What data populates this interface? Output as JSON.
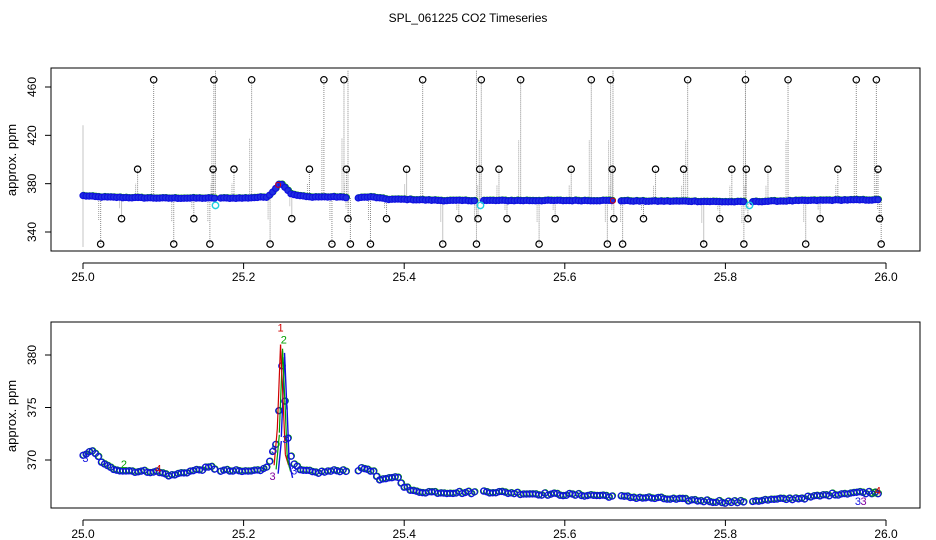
{
  "title": "SPL_061225  CO2 Timeseries",
  "chart_data": [
    {
      "type": "scatter",
      "ylabel": "approx. ppm",
      "xlabel": "",
      "xlim": [
        25.0,
        26.0
      ],
      "ylim": [
        323,
        475
      ],
      "xticks": [
        25.0,
        25.2,
        25.4,
        25.6,
        25.8,
        26.0
      ],
      "xtick_labels": [
        "25.0",
        "25.2",
        "25.4",
        "25.6",
        "25.8",
        "26.0"
      ],
      "yticks": [
        340,
        380,
        420,
        460
      ],
      "ytick_labels": [
        "340",
        "380",
        "420",
        "460"
      ],
      "colors": {
        "series": "#1010e0",
        "series_edge": "#00a000",
        "spike_line": "#7a7a7a",
        "outlier": "#000000",
        "cyan": "#20d0e0",
        "red": "#e00000"
      },
      "baseline": [
        [
          25.0,
          370
        ],
        [
          25.02,
          369
        ],
        [
          25.05,
          368.5
        ],
        [
          25.1,
          368
        ],
        [
          25.16,
          368
        ],
        [
          25.2,
          368
        ],
        [
          25.23,
          369
        ],
        [
          25.24,
          376
        ],
        [
          25.245,
          381
        ],
        [
          25.25,
          378
        ],
        [
          25.26,
          371
        ],
        [
          25.28,
          369
        ],
        [
          25.32,
          369
        ],
        [
          25.33,
          368
        ],
        [
          25.36,
          369
        ],
        [
          25.38,
          367
        ],
        [
          25.4,
          367
        ],
        [
          25.45,
          366
        ],
        [
          25.5,
          366
        ],
        [
          25.55,
          366
        ],
        [
          25.6,
          366
        ],
        [
          25.66,
          366
        ],
        [
          25.7,
          365.5
        ],
        [
          25.75,
          365.5
        ],
        [
          25.8,
          365
        ],
        [
          25.82,
          365
        ],
        [
          25.83,
          365
        ],
        [
          25.86,
          365.5
        ],
        [
          25.9,
          366
        ],
        [
          25.95,
          366.5
        ],
        [
          25.99,
          366.5
        ]
      ],
      "gaps": [
        [
          25.165,
          25.17
        ],
        [
          25.33,
          25.34
        ],
        [
          25.49,
          25.495
        ],
        [
          25.66,
          25.667
        ],
        [
          25.825,
          25.832
        ]
      ],
      "outliers_black": [
        [
          25.022,
          330
        ],
        [
          25.048,
          351
        ],
        [
          25.068,
          392
        ],
        [
          25.088,
          466
        ],
        [
          25.113,
          330
        ],
        [
          25.138,
          351
        ],
        [
          25.158,
          330
        ],
        [
          25.162,
          392
        ],
        [
          25.163,
          466
        ],
        [
          25.188,
          392
        ],
        [
          25.21,
          466
        ],
        [
          25.233,
          330
        ],
        [
          25.26,
          351
        ],
        [
          25.282,
          392
        ],
        [
          25.3,
          466
        ],
        [
          25.31,
          330
        ],
        [
          25.325,
          466
        ],
        [
          25.328,
          392
        ],
        [
          25.33,
          351
        ],
        [
          25.333,
          330
        ],
        [
          25.358,
          330
        ],
        [
          25.378,
          351
        ],
        [
          25.403,
          392
        ],
        [
          25.423,
          466
        ],
        [
          25.448,
          330
        ],
        [
          25.468,
          351
        ],
        [
          25.49,
          330
        ],
        [
          25.492,
          351
        ],
        [
          25.494,
          392
        ],
        [
          25.496,
          466
        ],
        [
          25.518,
          392
        ],
        [
          25.528,
          351
        ],
        [
          25.545,
          466
        ],
        [
          25.568,
          330
        ],
        [
          25.588,
          351
        ],
        [
          25.608,
          392
        ],
        [
          25.633,
          466
        ],
        [
          25.653,
          330
        ],
        [
          25.657,
          466
        ],
        [
          25.659,
          392
        ],
        [
          25.661,
          351
        ],
        [
          25.672,
          330
        ],
        [
          25.698,
          351
        ],
        [
          25.713,
          392
        ],
        [
          25.748,
          392
        ],
        [
          25.753,
          466
        ],
        [
          25.773,
          330
        ],
        [
          25.793,
          351
        ],
        [
          25.808,
          392
        ],
        [
          25.823,
          330
        ],
        [
          25.825,
          466
        ],
        [
          25.826,
          392
        ],
        [
          25.828,
          351
        ],
        [
          25.853,
          392
        ],
        [
          25.878,
          466
        ],
        [
          25.9,
          330
        ],
        [
          25.918,
          351
        ],
        [
          25.94,
          392
        ],
        [
          25.963,
          466
        ],
        [
          25.988,
          466
        ],
        [
          25.99,
          392
        ],
        [
          25.992,
          351
        ],
        [
          25.994,
          330
        ]
      ],
      "outliers_cyan": [
        [
          25.165,
          362
        ],
        [
          25.495,
          362
        ],
        [
          25.83,
          362
        ]
      ]
    },
    {
      "type": "scatter",
      "ylabel": "approx. ppm",
      "xlabel": "",
      "xlim": [
        25.0,
        26.0
      ],
      "ylim": [
        365,
        383
      ],
      "xticks": [
        25.0,
        25.2,
        25.4,
        25.6,
        25.8,
        26.0
      ],
      "xtick_labels": [
        "25.0",
        "25.2",
        "25.4",
        "25.6",
        "25.8",
        "26.0"
      ],
      "yticks": [
        370,
        375,
        380
      ],
      "ytick_labels": [
        "370",
        "375",
        "380"
      ],
      "baseline": [
        [
          25.0,
          370.5
        ],
        [
          25.012,
          370.8
        ],
        [
          25.02,
          370.2
        ],
        [
          25.025,
          369.6
        ],
        [
          25.035,
          369.2
        ],
        [
          25.05,
          369.0
        ],
        [
          25.07,
          368.9
        ],
        [
          25.09,
          368.9
        ],
        [
          25.1,
          368.7
        ],
        [
          25.11,
          368.5
        ],
        [
          25.125,
          368.8
        ],
        [
          25.14,
          369.0
        ],
        [
          25.16,
          369.3
        ],
        [
          25.17,
          369.0
        ],
        [
          25.2,
          368.9
        ],
        [
          25.22,
          369.0
        ],
        [
          25.23,
          369.5
        ],
        [
          25.24,
          371.5
        ],
        [
          25.244,
          375.0
        ],
        [
          25.247,
          379.5
        ],
        [
          25.25,
          377.0
        ],
        [
          25.255,
          372.0
        ],
        [
          25.26,
          369.8
        ],
        [
          25.27,
          369.0
        ],
        [
          25.29,
          368.8
        ],
        [
          25.32,
          369.0
        ],
        [
          25.34,
          369.0
        ],
        [
          25.35,
          369.2
        ],
        [
          25.36,
          369.0
        ],
        [
          25.37,
          368.0
        ],
        [
          25.38,
          368.2
        ],
        [
          25.39,
          368.5
        ],
        [
          25.4,
          367.5
        ],
        [
          25.41,
          367.0
        ],
        [
          25.45,
          366.9
        ],
        [
          25.49,
          366.9
        ],
        [
          25.5,
          367.0
        ],
        [
          25.55,
          366.8
        ],
        [
          25.6,
          366.7
        ],
        [
          25.65,
          366.6
        ],
        [
          25.665,
          366.5
        ],
        [
          25.7,
          366.4
        ],
        [
          25.75,
          366.2
        ],
        [
          25.8,
          366.0
        ],
        [
          25.82,
          366.0
        ],
        [
          25.83,
          366.1
        ],
        [
          25.86,
          366.2
        ],
        [
          25.9,
          366.4
        ],
        [
          25.93,
          366.7
        ],
        [
          25.96,
          366.9
        ],
        [
          25.99,
          366.9
        ]
      ],
      "gaps": [
        [
          25.165,
          25.17
        ],
        [
          25.33,
          25.34
        ],
        [
          25.49,
          25.495
        ],
        [
          25.66,
          25.667
        ],
        [
          25.825,
          25.832
        ]
      ],
      "annotations": [
        {
          "text": "1",
          "x": 25.246,
          "y": 382.6,
          "color": "#d00000"
        },
        {
          "text": "2",
          "x": 25.25,
          "y": 381.5,
          "color": "#00a000"
        },
        {
          "text": "3",
          "x": 25.238,
          "y": 371.0,
          "color": "#1010e0"
        },
        {
          "text": "3",
          "x": 25.252,
          "y": 372.0,
          "color": "#1010e0"
        },
        {
          "text": "3",
          "x": 25.236,
          "y": 368.5,
          "color": "#8000a0"
        },
        {
          "text": "3",
          "x": 25.263,
          "y": 369.0,
          "color": "#1010e0"
        },
        {
          "text": "3",
          "x": 25.003,
          "y": 370.2,
          "color": "#1010e0"
        },
        {
          "text": "4",
          "x": 25.094,
          "y": 369.2,
          "color": "#d00000"
        },
        {
          "text": "2",
          "x": 25.051,
          "y": 369.6,
          "color": "#00a000"
        },
        {
          "text": "3",
          "x": 25.965,
          "y": 366.1,
          "color": "#1010e0"
        },
        {
          "text": "3",
          "x": 25.972,
          "y": 366.1,
          "color": "#8000a0"
        },
        {
          "text": "2",
          "x": 25.985,
          "y": 366.9,
          "color": "#00a000"
        },
        {
          "text": "4",
          "x": 25.99,
          "y": 367.1,
          "color": "#d00000"
        }
      ]
    }
  ]
}
